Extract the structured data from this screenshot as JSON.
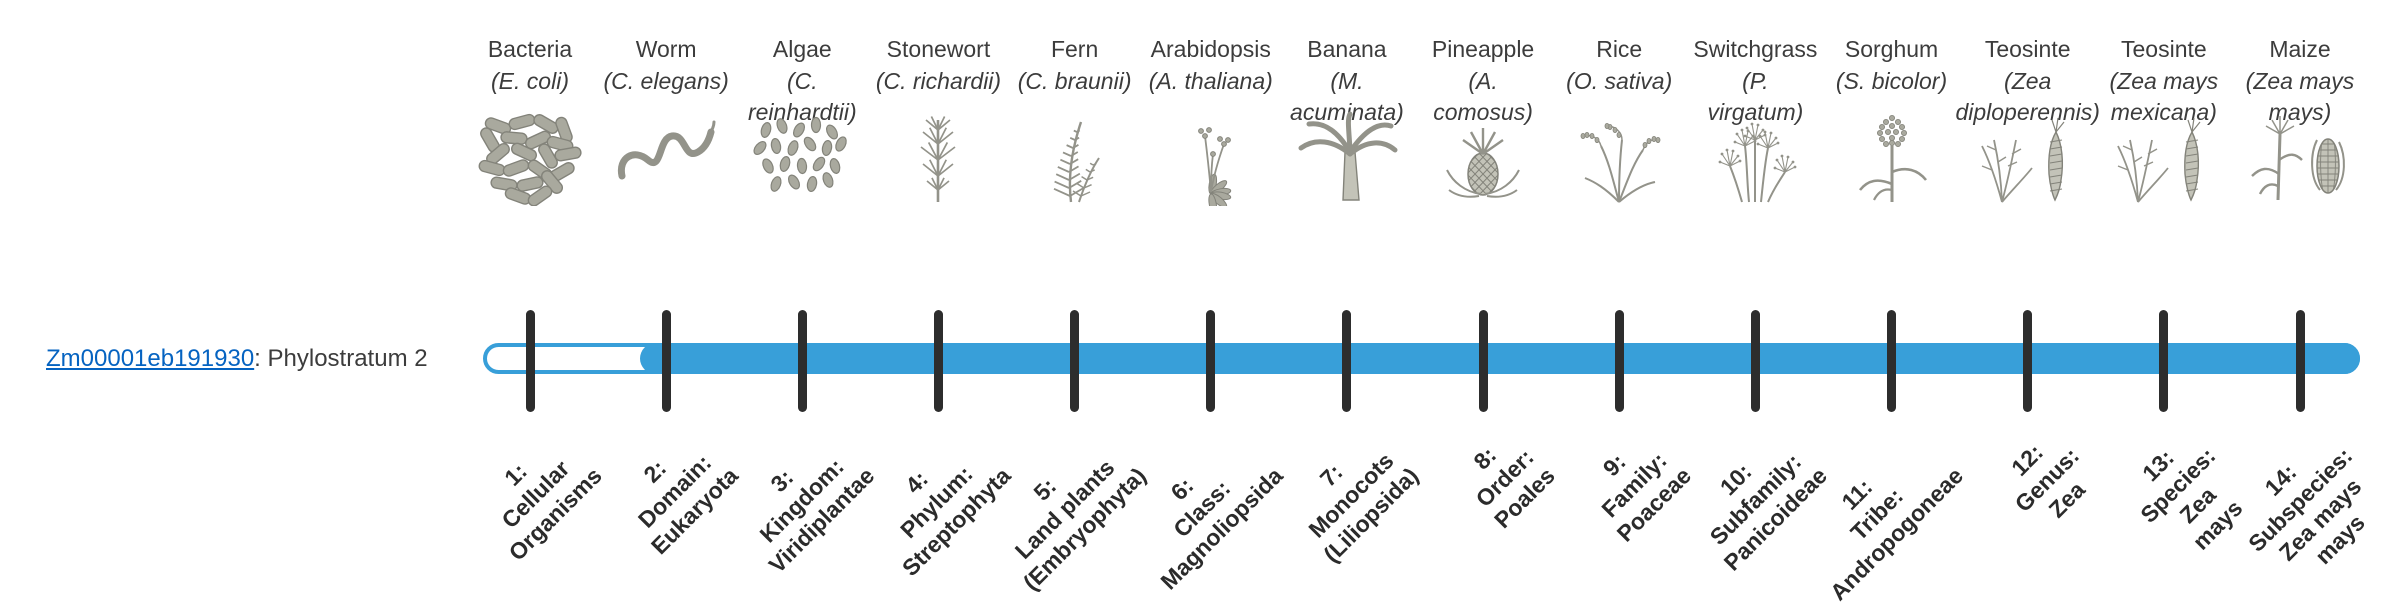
{
  "gene": {
    "id": "Zm00001eb191930",
    "suffix": ": Phylostratum 2",
    "phylostratum": 2
  },
  "colors": {
    "bar_blue": "#389fd9",
    "tick": "#2d2d2d",
    "link": "#0563c1",
    "text": "#3c3c3c",
    "stratum_text": "#2b2b2b"
  },
  "timeline": {
    "total_strata": 14,
    "filled_from_stratum": 2
  },
  "organisms": [
    {
      "name": "Bacteria",
      "sci_lines": [
        "(E. coli)"
      ],
      "icon": "bacteria"
    },
    {
      "name": "Worm",
      "sci_lines": [
        "(C. elegans)"
      ],
      "icon": "worm"
    },
    {
      "name": "Algae",
      "sci_lines": [
        "(C.",
        "reinhardtii)"
      ],
      "icon": "algae"
    },
    {
      "name": "Stonewort",
      "sci_lines": [
        "(C. richardii)"
      ],
      "icon": "stonewort"
    },
    {
      "name": "Fern",
      "sci_lines": [
        "(C. braunii)"
      ],
      "icon": "fern"
    },
    {
      "name": "Arabidopsis",
      "sci_lines": [
        "(A. thaliana)"
      ],
      "icon": "arabidopsis"
    },
    {
      "name": "Banana",
      "sci_lines": [
        "(M.",
        "acuminata)"
      ],
      "icon": "banana"
    },
    {
      "name": "Pineapple",
      "sci_lines": [
        "(A.",
        "comosus)"
      ],
      "icon": "pineapple"
    },
    {
      "name": "Rice",
      "sci_lines": [
        "(O. sativa)"
      ],
      "icon": "rice"
    },
    {
      "name": "Switchgrass",
      "sci_lines": [
        "(P.",
        "virgatum)"
      ],
      "icon": "switchgrass"
    },
    {
      "name": "Sorghum",
      "sci_lines": [
        "(S. bicolor)"
      ],
      "icon": "sorghum"
    },
    {
      "name": "Teosinte",
      "sci_lines": [
        "(Zea",
        "diploperennis)"
      ],
      "icon": "teosinte"
    },
    {
      "name": "Teosinte",
      "sci_lines": [
        "(Zea mays",
        "mexicana)"
      ],
      "icon": "teosinte"
    },
    {
      "name": "Maize",
      "sci_lines": [
        "(Zea mays",
        "mays)"
      ],
      "icon": "maize"
    }
  ],
  "strata": [
    {
      "lines": [
        "1:",
        "Cellular",
        "Organisms"
      ]
    },
    {
      "lines": [
        "2:",
        "Domain:",
        "Eukaryota"
      ]
    },
    {
      "lines": [
        "3:",
        "Kingdom:",
        "Viridiplantae"
      ]
    },
    {
      "lines": [
        "4:",
        "Phylum:",
        "Streptophyta"
      ]
    },
    {
      "lines": [
        "5:",
        "Land plants",
        "(Embryophyta)"
      ]
    },
    {
      "lines": [
        "6:",
        "Class:",
        "Magnoliopsida"
      ]
    },
    {
      "lines": [
        "7:",
        "Monocots",
        "(Liliopsida)"
      ]
    },
    {
      "lines": [
        "8:",
        "Order:",
        "Poales"
      ]
    },
    {
      "lines": [
        "9:",
        "Family:",
        "Poaceae"
      ]
    },
    {
      "lines": [
        "10:",
        "Subfamily:",
        "Panicoideae"
      ]
    },
    {
      "lines": [
        "11:",
        "Tribe:",
        "Andropogoneae"
      ]
    },
    {
      "lines": [
        "12:",
        "Genus:",
        "Zea"
      ]
    },
    {
      "lines": [
        "13:",
        "Species:",
        "Zea",
        "mays"
      ]
    },
    {
      "lines": [
        "14:",
        "Subspecies:",
        "Zea mays",
        "mays"
      ]
    }
  ]
}
